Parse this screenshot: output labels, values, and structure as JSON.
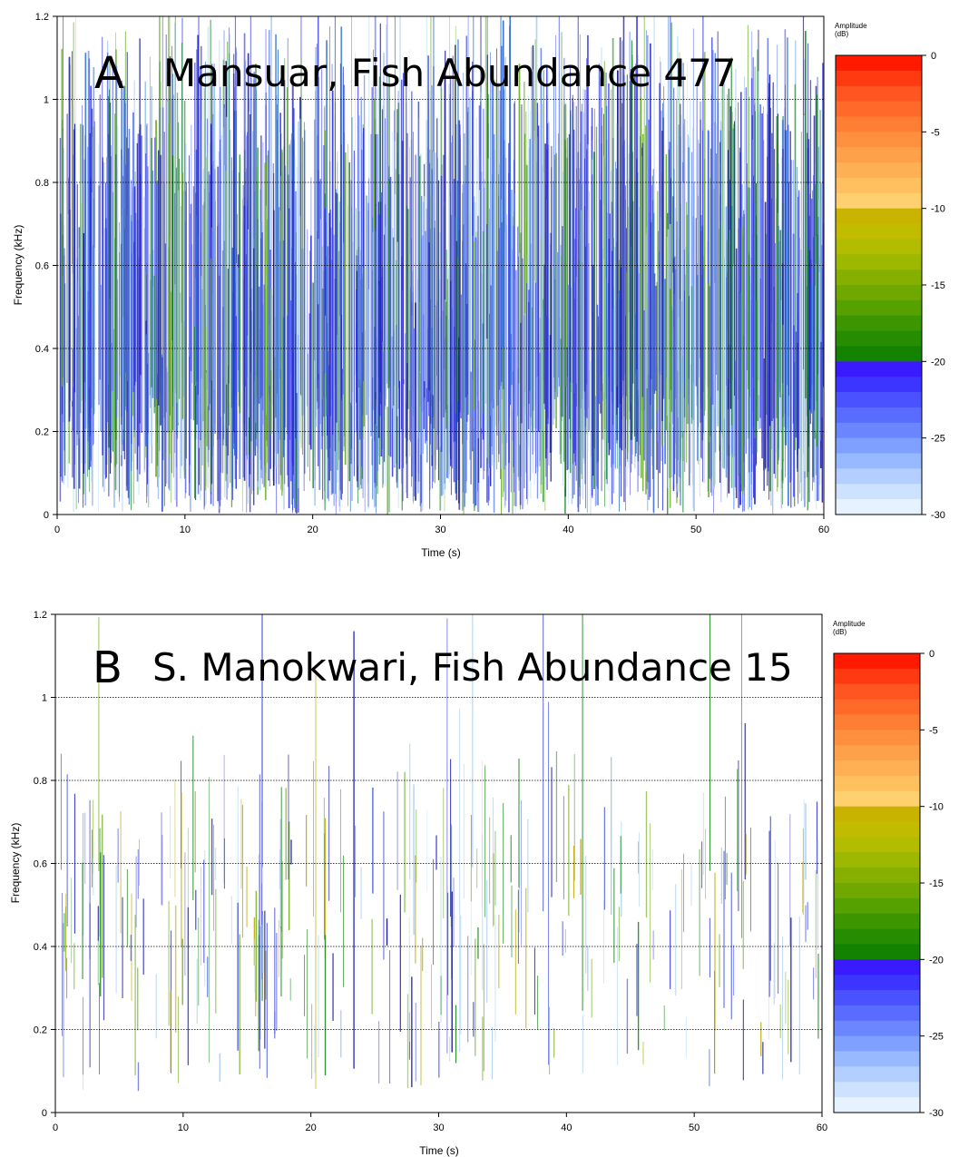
{
  "chart_data": [
    {
      "type": "heatmap",
      "panel_letter": "A",
      "title": "Mansuar, Fish Abundance 477",
      "xlabel": "Time (s)",
      "ylabel": "Frequency (kHz)",
      "xlim": [
        0,
        60
      ],
      "ylim": [
        0,
        1.2
      ],
      "x_ticks": [
        "0",
        "10",
        "20",
        "30",
        "40",
        "50",
        "60"
      ],
      "y_ticks": [
        "0",
        "0.2",
        "0.4",
        "0.6",
        "0.8",
        "1",
        "1.2"
      ],
      "gridlines_y": [
        0.2,
        0.4,
        0.6,
        0.8,
        1.0
      ],
      "density": "high",
      "colorbar": {
        "title_line1": "Amplitude",
        "title_line2": "(dB)",
        "range": [
          -30,
          0
        ],
        "ticks": [
          "0",
          "-5",
          "-10",
          "-15",
          "-20",
          "-25",
          "-30"
        ]
      }
    },
    {
      "type": "heatmap",
      "panel_letter": "B",
      "title": "S. Manokwari, Fish Abundance 15",
      "xlabel": "Time (s)",
      "ylabel": "Frequency (kHz)",
      "xlim": [
        0,
        60
      ],
      "ylim": [
        0,
        1.2
      ],
      "x_ticks": [
        "0",
        "10",
        "20",
        "30",
        "40",
        "50",
        "60"
      ],
      "y_ticks": [
        "0",
        "0.2",
        "0.4",
        "0.6",
        "0.8",
        "1",
        "1.2"
      ],
      "gridlines_y": [
        0.2,
        0.4,
        0.6,
        0.8,
        1.0
      ],
      "density": "low",
      "colorbar": {
        "title_line1": "Amplitude",
        "title_line2": "(dB)",
        "range": [
          -30,
          0
        ],
        "ticks": [
          "0",
          "-5",
          "-10",
          "-15",
          "-20",
          "-25",
          "-30"
        ]
      }
    }
  ],
  "colors": {
    "colorbar_bands": [
      "#ff1a00",
      "#ff3a10",
      "#ff5520",
      "#ff6a2a",
      "#ff7e35",
      "#ff9040",
      "#ffa04a",
      "#ffb055",
      "#ffc060",
      "#ffd070",
      "#c8b400",
      "#c2bc00",
      "#b2bc00",
      "#9db800",
      "#86b000",
      "#6ea800",
      "#56a000",
      "#3c9600",
      "#268c00",
      "#128200",
      "#3a1aff",
      "#3c34ff",
      "#4a52ff",
      "#5a6cff",
      "#6c86ff",
      "#80a0ff",
      "#98b8ff",
      "#b2cfff",
      "#cce2ff",
      "#e6f2ff"
    ],
    "dense_palette": [
      "#2a2ad8",
      "#3b3be6",
      "#1e1e9e",
      "#4a5af0",
      "#6e8cf0",
      "#9ec4f0",
      "#c8e4f4",
      "#1f8a2a",
      "#6cb02a",
      "#2f6fd0"
    ],
    "sparse_palette": [
      "#3030c8",
      "#2020a0",
      "#4a58e0",
      "#9ec4f0",
      "#c0ddf4",
      "#2a8c2a",
      "#7ab02a",
      "#b8a800"
    ]
  }
}
